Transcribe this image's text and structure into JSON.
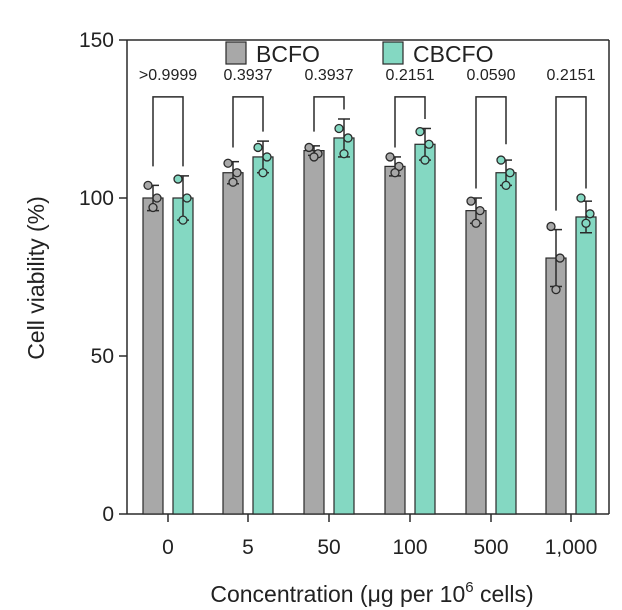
{
  "chart_data": {
    "type": "bar",
    "xlabel": "Concentration (μg per 10",
    "xlabel_sup": "6",
    "xlabel_tail": " cells)",
    "ylabel": "Cell viability (%)",
    "ylim": [
      0,
      150
    ],
    "yticks": [
      0,
      50,
      100,
      150
    ],
    "categories": [
      "0",
      "5",
      "50",
      "100",
      "500",
      "1,000"
    ],
    "legend_position": "top",
    "series": [
      {
        "name": "BCFO",
        "color": "#a8a8a8",
        "values": [
          100,
          108,
          115,
          110,
          96,
          81
        ],
        "errors": [
          4,
          3.5,
          1.5,
          3,
          4,
          9
        ],
        "points": [
          [
            104,
            100,
            97
          ],
          [
            111,
            108,
            105
          ],
          [
            116,
            114,
            113
          ],
          [
            113,
            110,
            108
          ],
          [
            99,
            96,
            92
          ],
          [
            91,
            81,
            71
          ]
        ]
      },
      {
        "name": "CBCFO",
        "color": "#84d8c2",
        "values": [
          100,
          113,
          119,
          117,
          108,
          94
        ],
        "errors": [
          7,
          5,
          6,
          5,
          4,
          5
        ],
        "points": [
          [
            106,
            100,
            93
          ],
          [
            116,
            113,
            108
          ],
          [
            122,
            119,
            114
          ],
          [
            121,
            117,
            112
          ],
          [
            112,
            108,
            104
          ],
          [
            100,
            95,
            92
          ]
        ]
      }
    ],
    "p_values": [
      ">0.9999",
      "0.3937",
      "0.3937",
      "0.2151",
      "0.0590",
      "0.2151"
    ],
    "bracket_tops": [
      132,
      132,
      132,
      132,
      132,
      132
    ],
    "bracket_left_ends": [
      110,
      116,
      121,
      116,
      103,
      96
    ],
    "bracket_right_ends": [
      110,
      121,
      128,
      125,
      117,
      103
    ]
  }
}
